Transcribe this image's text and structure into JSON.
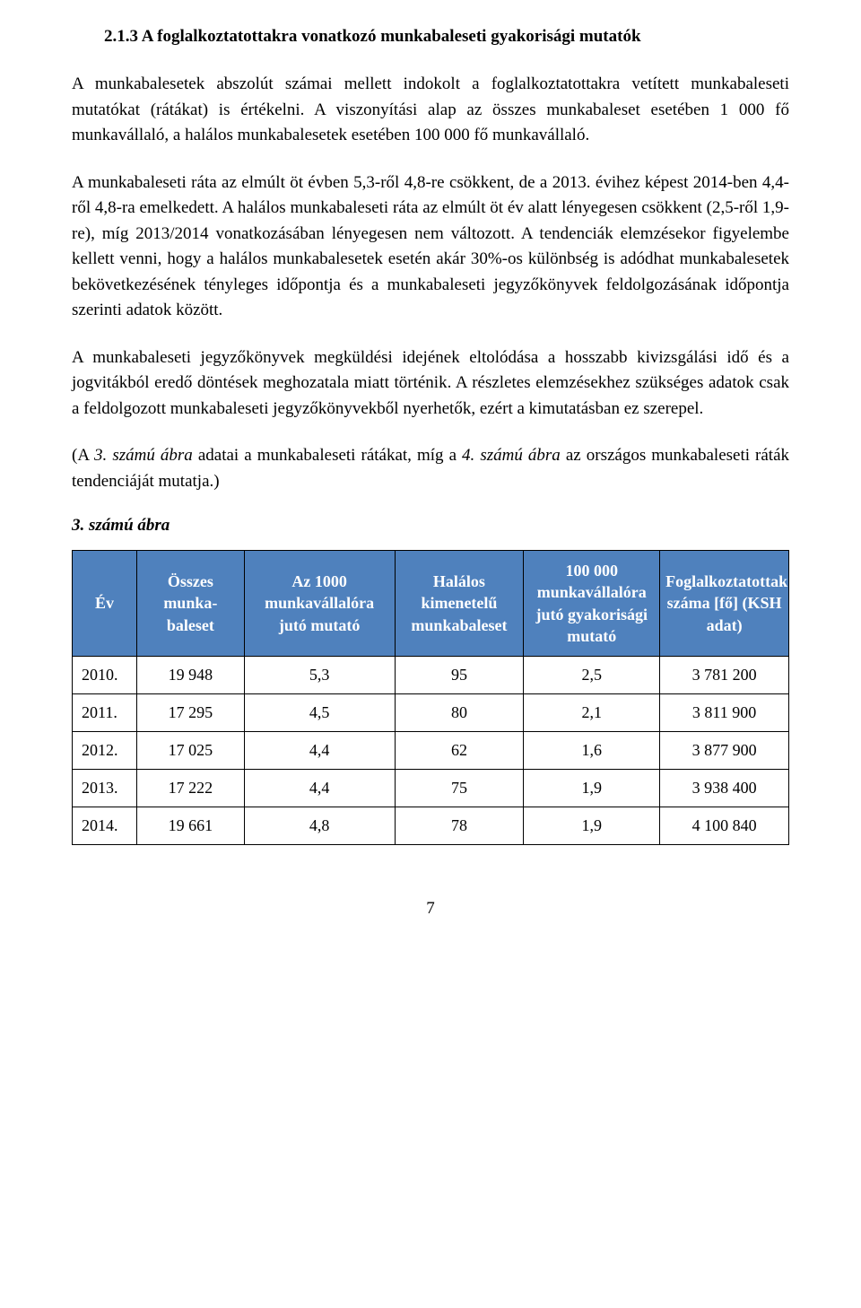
{
  "heading": "2.1.3   A foglalkoztatottakra vonatkozó munkabaleseti gyakorisági mutatók",
  "paragraphs": {
    "p1": "A munkabalesetek abszolút számai mellett indokolt a foglalkoztatottakra vetített munkabaleseti mutatókat (rátákat) is értékelni. A viszonyítási alap az összes munkabaleset esetében 1 000 fő munkavállaló, a halálos munkabalesetek esetében 100 000 fő munkavállaló.",
    "p2": "A munkabaleseti ráta az elmúlt öt évben 5,3-ről 4,8-re csökkent, de a 2013. évihez képest 2014-ben 4,4-ről 4,8-ra emelkedett. A halálos munkabaleseti ráta az elmúlt öt év alatt lényegesen csökkent (2,5-ről 1,9-re), míg 2013/2014 vonatkozásában lényegesen nem változott. A tendenciák elemzésekor figyelembe kellett venni, hogy a halálos munkabalesetek esetén akár 30%-os különbség is adódhat munkabalesetek bekövetkezésének tényleges időpontja és a munkabaleseti jegyzőkönyvek feldolgozásának időpontja szerinti adatok között.",
    "p3": "A munkabaleseti jegyzőkönyvek megküldési idejének eltolódása a hosszabb kivizsgálási idő és a jogvitákból eredő döntések meghozatala miatt történik. A részletes elemzésekhez szükséges adatok csak a feldolgozott munkabaleseti jegyzőkönyvekből nyerhetők, ezért a kimutatásban ez szerepel."
  },
  "fig_note": {
    "pre": "(A ",
    "i1": "3. számú ábra",
    "mid1": " adatai a munkabaleseti rátákat, míg a ",
    "i2": "4. számú ábra",
    "mid2": " az országos munkabaleseti ráták tendenciáját mutatja.)"
  },
  "fig_caption": "3. számú ábra",
  "table": {
    "header_bg": "#4f81bd",
    "header_fg": "#ffffff",
    "border_color": "#000000",
    "col_widths_pct": [
      9,
      15,
      21,
      18,
      19,
      18
    ],
    "columns": [
      "Év",
      "Összes munka-baleset",
      "Az 1000 munkavállalóra jutó mutató",
      "Halálos kimenetelű munkabaleset",
      "100 000 munkavállalóra jutó gyakorisági mutató",
      "Foglalkoztatottak száma [fő] (KSH adat)"
    ],
    "rows": [
      [
        "2010.",
        "19 948",
        "5,3",
        "95",
        "2,5",
        "3 781 200"
      ],
      [
        "2011.",
        "17 295",
        "4,5",
        "80",
        "2,1",
        "3 811 900"
      ],
      [
        "2012.",
        "17 025",
        "4,4",
        "62",
        "1,6",
        "3 877 900"
      ],
      [
        "2013.",
        "17 222",
        "4,4",
        "75",
        "1,9",
        "3 938 400"
      ],
      [
        "2014.",
        "19 661",
        "4,8",
        "78",
        "1,9",
        "4 100 840"
      ]
    ]
  },
  "page_number": "7"
}
